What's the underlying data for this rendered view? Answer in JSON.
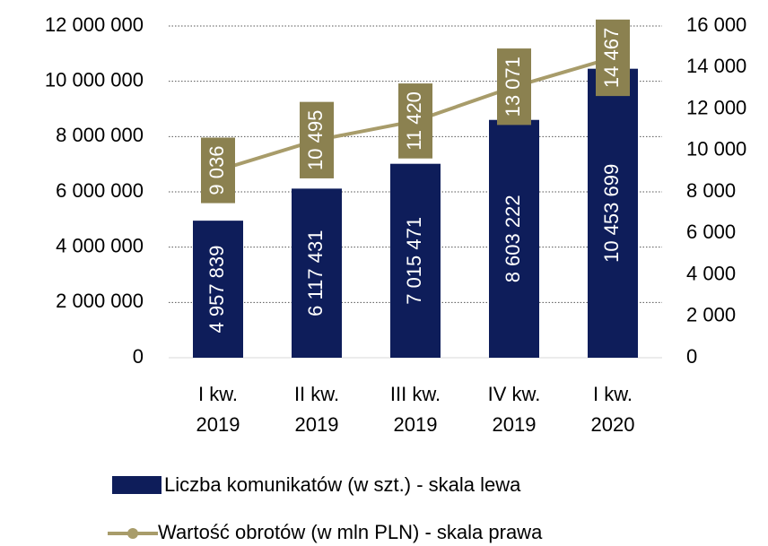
{
  "chart_data": {
    "type": "bar",
    "categories": [
      "I kw. 2019",
      "II kw. 2019",
      "III kw. 2019",
      "IV kw. 2019",
      "I kw. 2020"
    ],
    "series": [
      {
        "name": "Liczba komunikatów (w szt.) - skala lewa",
        "type": "bar",
        "color": "#0e1d5a",
        "values": [
          4957839,
          6117431,
          7015471,
          8603222,
          10453699
        ],
        "value_labels": [
          "4 957 839",
          "6 117 431",
          "7 015 471",
          "8 603 222",
          "10 453 699"
        ]
      },
      {
        "name": "Wartość obrotów (w mln PLN) - skala prawa",
        "type": "line",
        "axis": "y2",
        "color": "#a89c6a",
        "label_color": "#8b8150",
        "values": [
          9036,
          10495,
          11420,
          13071,
          14467
        ],
        "value_labels": [
          "9 036",
          "10 495",
          "11 420",
          "13 071",
          "14 467"
        ]
      }
    ],
    "ylim": [
      0,
      12000000
    ],
    "yticks": [
      0,
      {
        "value": 2000000,
        "label": "2 000 000"
      },
      {
        "value": 4000000,
        "label": "4 000 000"
      },
      {
        "value": 6000000,
        "label": "6 000 000"
      },
      {
        "value": 8000000,
        "label": "8 000 000"
      },
      {
        "value": 10000000,
        "label": "10 000 000"
      },
      {
        "value": 12000000,
        "label": "12 000 000"
      }
    ],
    "y2lim": [
      0,
      16000
    ],
    "y2ticks": [
      0,
      {
        "value": 2000,
        "label": "2 000"
      },
      {
        "value": 4000,
        "label": "4 000"
      },
      {
        "value": 6000,
        "label": "6 000"
      },
      {
        "value": 8000,
        "label": "8 000"
      },
      {
        "value": 10000,
        "label": "10 000"
      },
      {
        "value": 12000,
        "label": "12 000"
      },
      {
        "value": 14000,
        "label": "14 000"
      },
      {
        "value": 16000,
        "label": "16 000"
      }
    ],
    "grid": true
  }
}
